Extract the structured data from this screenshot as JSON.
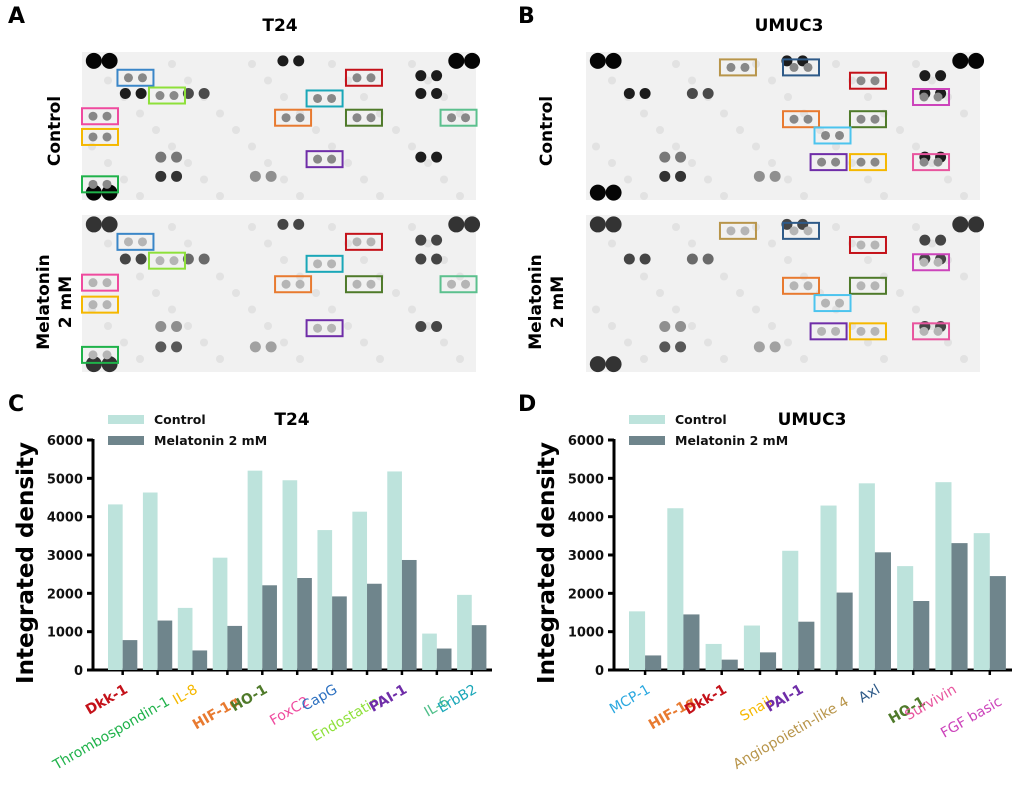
{
  "figure": {
    "panels": {
      "A": {
        "letter": "A",
        "title": "T24"
      },
      "B": {
        "letter": "B",
        "title": "UMUC3"
      },
      "C": {
        "letter": "C"
      },
      "D": {
        "letter": "D"
      }
    },
    "row_labels": {
      "control": "Control",
      "melatonin": "Melatonin\n2 mM"
    },
    "blot_box_colors": {
      "T24": [
        "#3a86c8",
        "#8ee03a",
        "#ef4b9f",
        "#f5b800",
        "#1fb24a",
        "#1aa7b8",
        "#e87a30",
        "#c4121a",
        "#4f7a2a",
        "#6f2da8",
        "#5cc08e"
      ],
      "UMUC3": [
        "#b8954a",
        "#2e5a88",
        "#c4121a",
        "#cc44bb",
        "#e87a30",
        "#4f7a2a",
        "#4cc4ee",
        "#6f2da8",
        "#f5b800",
        "#e8559e"
      ]
    }
  },
  "chart_data": [
    {
      "type": "bar",
      "panel": "C",
      "title": "T24",
      "xlabel": "",
      "ylabel": "Integrated density",
      "ylim": [
        0,
        6000
      ],
      "yticks": [
        0,
        1000,
        2000,
        3000,
        4000,
        5000,
        6000
      ],
      "grid": false,
      "legend_position": "top-left",
      "categories": [
        "Dkk-1",
        "Thrombospondin-1",
        "IL-8",
        "HIF-1α",
        "HO-1",
        "FoxC2",
        "CapG",
        "Endostatin",
        "PAI-1",
        "IL-6",
        "ErbB2"
      ],
      "category_colors": [
        "#c4121a",
        "#1fb24a",
        "#f5b800",
        "#e87a30",
        "#4f7a2a",
        "#ef4b9f",
        "#2a6fc0",
        "#8ee03a",
        "#6f2da8",
        "#4fbf8a",
        "#1aa7b8"
      ],
      "category_bold": [
        true,
        false,
        false,
        true,
        true,
        false,
        false,
        false,
        true,
        false,
        false
      ],
      "series": [
        {
          "name": "Control",
          "color": "#bde3dc",
          "values": [
            4320,
            4630,
            1620,
            2930,
            5200,
            4950,
            3650,
            4130,
            5180,
            950,
            1960
          ]
        },
        {
          "name": "Melatonin 2 mM",
          "color": "#6f858c",
          "values": [
            780,
            1290,
            510,
            1150,
            2210,
            2400,
            1920,
            2250,
            2870,
            560,
            1170
          ]
        }
      ]
    },
    {
      "type": "bar",
      "panel": "D",
      "title": "UMUC3",
      "xlabel": "",
      "ylabel": "Integrated density",
      "ylim": [
        0,
        6000
      ],
      "yticks": [
        0,
        1000,
        2000,
        3000,
        4000,
        5000,
        6000
      ],
      "grid": false,
      "legend_position": "top-left",
      "categories": [
        "MCP-1",
        "HIF-1α",
        "Dkk-1",
        "Snail",
        "PAI-1",
        "Angiopoietin-like 4",
        "Axl",
        "HO-1",
        "Survivin",
        "FGF basic"
      ],
      "category_colors": [
        "#2aa8e0",
        "#e87a30",
        "#c4121a",
        "#f5b800",
        "#6f2da8",
        "#b8954a",
        "#2e5a88",
        "#4f7a2a",
        "#e8559e",
        "#cc44bb"
      ],
      "category_bold": [
        false,
        true,
        true,
        false,
        true,
        false,
        false,
        true,
        false,
        false
      ],
      "series": [
        {
          "name": "Control",
          "color": "#bde3dc",
          "values": [
            1530,
            4220,
            680,
            1160,
            3110,
            4290,
            4870,
            2710,
            4900,
            3570
          ]
        },
        {
          "name": "Melatonin 2 mM",
          "color": "#6f858c",
          "values": [
            380,
            1450,
            270,
            460,
            1260,
            2020,
            3070,
            1800,
            3310,
            2450
          ]
        }
      ]
    }
  ]
}
